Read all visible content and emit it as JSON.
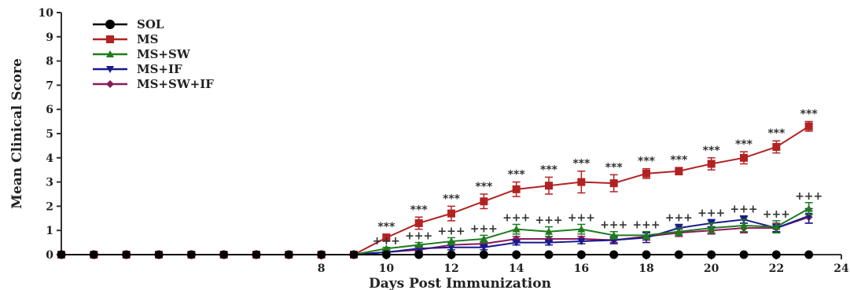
{
  "chart_data": {
    "type": "line",
    "title": "",
    "xlabel": "Days Post Immunization",
    "ylabel": "Mean Clinical Score",
    "xlim": [
      0,
      24
    ],
    "ylim": [
      0,
      10
    ],
    "x_ticks": [
      "8",
      "10",
      "12",
      "14",
      "16",
      "18",
      "20",
      "22",
      "24"
    ],
    "y_ticks": [
      "0",
      "1",
      "2",
      "3",
      "4",
      "5",
      "6",
      "7",
      "8",
      "9",
      "10"
    ],
    "x": [
      0,
      1,
      2,
      3,
      4,
      5,
      6,
      7,
      8,
      9,
      10,
      11,
      12,
      13,
      14,
      15,
      16,
      17,
      18,
      19,
      20,
      21,
      22,
      23
    ],
    "legend_position": "top-left",
    "series": [
      {
        "name": "SOL",
        "color": "#000000",
        "marker": "circle",
        "values": [
          0,
          0,
          0,
          0,
          0,
          0,
          0,
          0,
          0,
          0,
          0,
          0,
          0,
          0,
          0,
          0,
          0,
          0,
          0,
          0,
          0,
          0,
          0,
          0
        ],
        "errors": [
          0,
          0,
          0,
          0,
          0,
          0,
          0,
          0,
          0,
          0,
          0,
          0,
          0,
          0,
          0,
          0,
          0,
          0,
          0,
          0,
          0,
          0,
          0,
          0
        ]
      },
      {
        "name": "MS",
        "color": "#b22222",
        "marker": "square",
        "values": [
          0,
          0,
          0,
          0,
          0,
          0,
          0,
          0,
          0,
          0,
          0.7,
          1.3,
          1.7,
          2.2,
          2.7,
          2.85,
          3.0,
          2.95,
          3.35,
          3.45,
          3.75,
          4.0,
          4.45,
          5.3
        ],
        "errors": [
          0,
          0,
          0,
          0,
          0,
          0,
          0,
          0,
          0,
          0,
          0.15,
          0.25,
          0.3,
          0.3,
          0.3,
          0.35,
          0.45,
          0.35,
          0.2,
          0.15,
          0.25,
          0.25,
          0.25,
          0.2
        ]
      },
      {
        "name": "MS+SW",
        "color": "#1e7b1e",
        "marker": "triangle-up",
        "values": [
          0,
          0,
          0,
          0,
          0,
          0,
          0,
          0,
          0,
          0,
          0.25,
          0.4,
          0.55,
          0.65,
          1.05,
          0.95,
          1.05,
          0.8,
          0.8,
          0.95,
          1.1,
          1.2,
          1.15,
          1.9
        ],
        "errors": [
          0,
          0,
          0,
          0,
          0,
          0,
          0,
          0,
          0,
          0,
          0.05,
          0.1,
          0.15,
          0.15,
          0.2,
          0.2,
          0.2,
          0.15,
          0.15,
          0.15,
          0.2,
          0.25,
          0.25,
          0.25
        ]
      },
      {
        "name": "MS+IF",
        "color": "#1a1a8c",
        "marker": "triangle-down",
        "values": [
          0,
          0,
          0,
          0,
          0,
          0,
          0,
          0,
          0,
          0,
          0.1,
          0.25,
          0.3,
          0.3,
          0.5,
          0.5,
          0.55,
          0.6,
          0.7,
          1.1,
          1.3,
          1.45,
          1.1,
          1.6
        ],
        "errors": [
          0,
          0,
          0,
          0,
          0,
          0,
          0,
          0,
          0,
          0,
          0.05,
          0.1,
          0.1,
          0.1,
          0.1,
          0.1,
          0.1,
          0.15,
          0.2,
          0.15,
          0.15,
          0.15,
          0.15,
          0.3
        ]
      },
      {
        "name": "MS+SW+IF",
        "color": "#8b1a5a",
        "marker": "diamond",
        "values": [
          0,
          0,
          0,
          0,
          0,
          0,
          0,
          0,
          0,
          0,
          0.1,
          0.2,
          0.4,
          0.45,
          0.65,
          0.65,
          0.65,
          0.6,
          0.75,
          0.9,
          1.0,
          1.1,
          1.1,
          1.55
        ],
        "errors": [
          0,
          0,
          0,
          0,
          0,
          0,
          0,
          0,
          0,
          0,
          0.05,
          0.1,
          0.1,
          0.1,
          0.1,
          0.1,
          0.1,
          0.1,
          0.15,
          0.15,
          0.15,
          0.2,
          0.2,
          0.25
        ]
      }
    ],
    "annotations": {
      "stars": {
        "text": "***",
        "x": [
          10,
          11,
          12,
          13,
          14,
          15,
          16,
          17,
          18,
          19,
          20,
          21,
          22,
          23
        ]
      },
      "plus": {
        "text": "+++",
        "x": [
          10,
          11,
          12,
          13,
          14,
          15,
          16,
          17,
          18,
          19,
          20,
          21,
          22,
          23
        ]
      }
    }
  }
}
